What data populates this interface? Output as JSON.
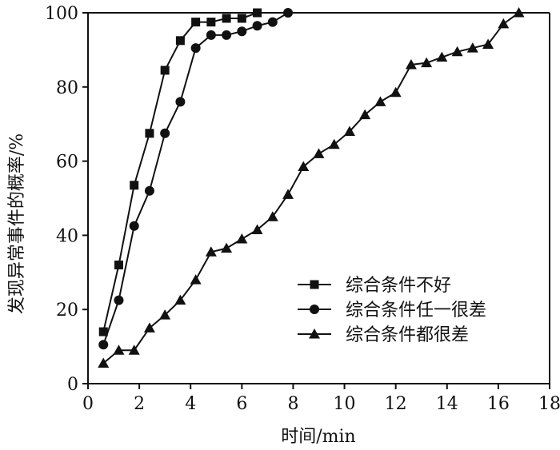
{
  "chart_data": {
    "type": "line",
    "xlabel": "时间/min",
    "ylabel": "发现异常事件的概率/%",
    "xlim": [
      0,
      18
    ],
    "ylim": [
      0,
      100
    ],
    "xticks": [
      0,
      2,
      4,
      6,
      8,
      10,
      12,
      14,
      16,
      18
    ],
    "yticks": [
      0,
      20,
      40,
      60,
      80,
      100
    ],
    "grid": false,
    "legend_position": "bottom-right",
    "series": [
      {
        "name": "综合条件不好",
        "marker": "square",
        "x": [
          0.6,
          1.2,
          1.8,
          2.4,
          3.0,
          3.6,
          4.2,
          4.8,
          5.4,
          6.0,
          6.6
        ],
        "y": [
          14,
          32,
          53.5,
          67.5,
          84.5,
          92.5,
          97.5,
          97.5,
          98.5,
          98.5,
          100
        ]
      },
      {
        "name": "综合条件任一很差",
        "marker": "circle",
        "x": [
          0.6,
          1.2,
          1.8,
          2.4,
          3.0,
          3.6,
          4.2,
          4.8,
          5.4,
          6.0,
          6.6,
          7.2,
          7.8
        ],
        "y": [
          10.5,
          22.5,
          42.5,
          52,
          67.5,
          76,
          90.5,
          94,
          94,
          95,
          96.5,
          97.5,
          100
        ]
      },
      {
        "name": "综合条件都很差",
        "marker": "triangle",
        "x": [
          0.6,
          1.2,
          1.8,
          2.4,
          3.0,
          3.6,
          4.2,
          4.8,
          5.4,
          6.0,
          6.6,
          7.2,
          7.8,
          8.4,
          9.0,
          9.6,
          10.2,
          10.8,
          11.4,
          12.0,
          12.6,
          13.2,
          13.8,
          14.4,
          15.0,
          15.6,
          16.2,
          16.8
        ],
        "y": [
          5.5,
          9,
          9,
          15,
          18.5,
          22.5,
          28,
          35.5,
          36.5,
          39,
          41.5,
          45,
          51,
          58.5,
          62,
          64.5,
          68,
          72.5,
          76,
          78.5,
          86,
          86.5,
          88,
          89.5,
          90.5,
          91.5,
          97,
          100
        ]
      }
    ]
  }
}
